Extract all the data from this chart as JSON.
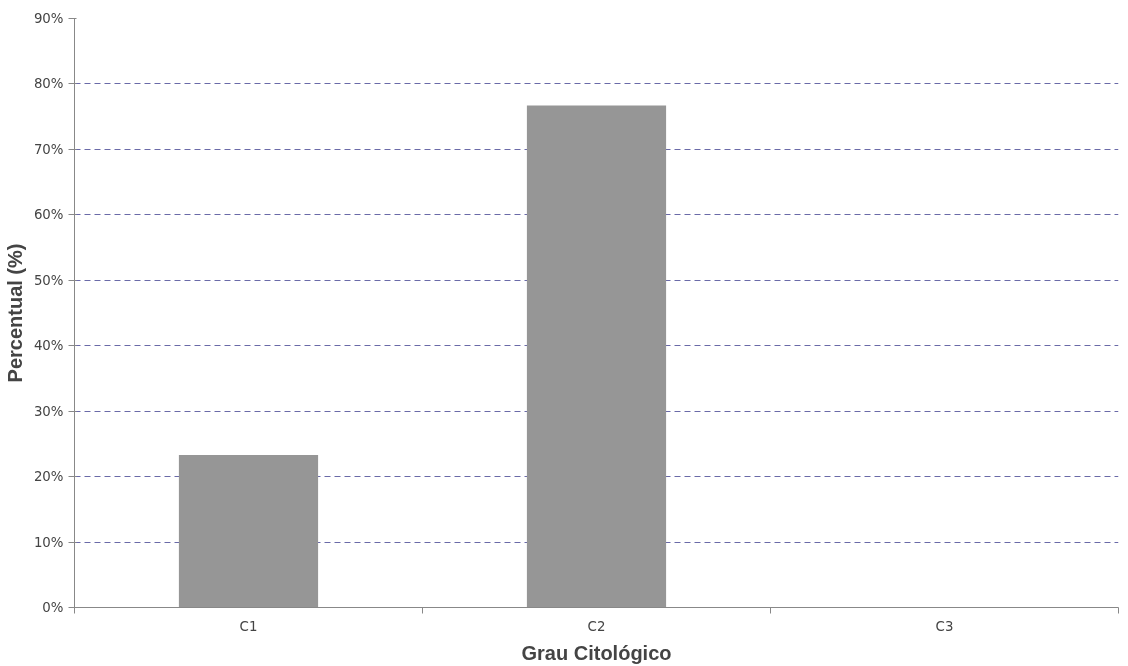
{
  "chart_data": {
    "type": "bar",
    "xlabel": "Grau Citológico",
    "ylabel": "Percentual (%)",
    "categories": [
      "C1",
      "C2",
      "C3"
    ],
    "values": [
      23.3,
      76.7,
      0
    ],
    "color": "#969696",
    "ylim": [
      0,
      90
    ],
    "yticks": [
      {
        "value": 0,
        "label": "0%"
      },
      {
        "value": 10,
        "label": "10%"
      },
      {
        "value": 20,
        "label": "20%"
      },
      {
        "value": 30,
        "label": "30%"
      },
      {
        "value": 40,
        "label": "40%"
      },
      {
        "value": 50,
        "label": "50%"
      },
      {
        "value": 60,
        "label": "60%"
      },
      {
        "value": 70,
        "label": "70%"
      },
      {
        "value": 80,
        "label": "80%"
      },
      {
        "value": 90,
        "label": "90%"
      }
    ],
    "grid": "y"
  }
}
